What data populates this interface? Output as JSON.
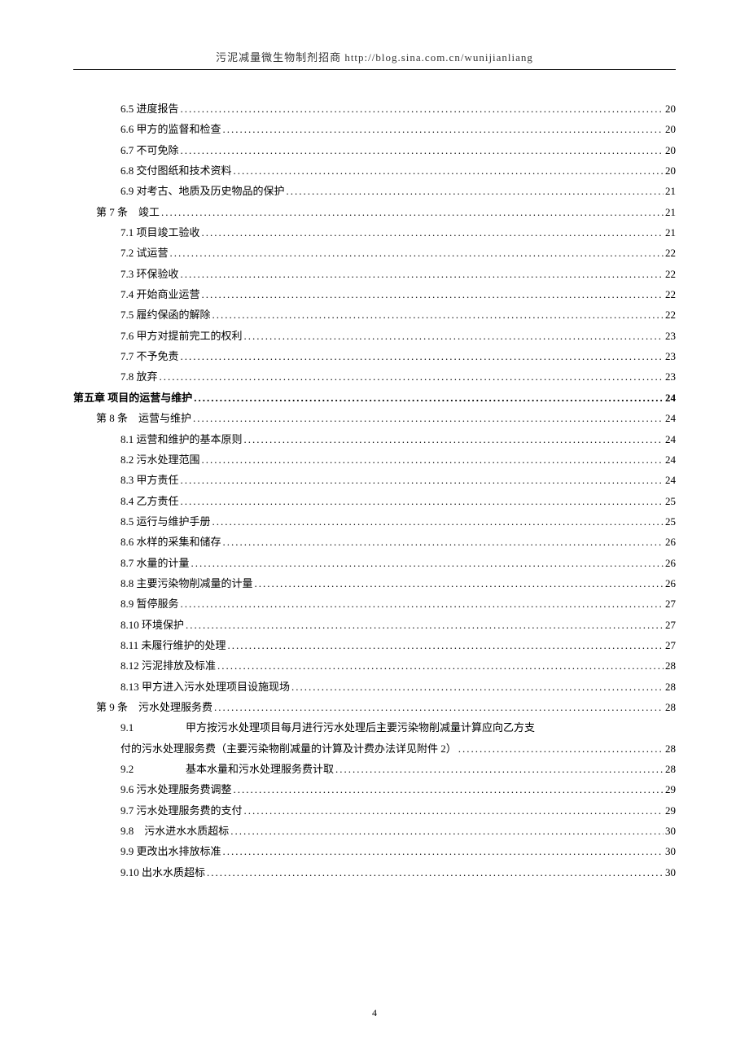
{
  "header": "污泥减量微生物制剂招商 http://blog.sina.com.cn/wunijianliang",
  "page_number": "4",
  "toc": [
    {
      "level": 2,
      "text": "6.5 进度报告",
      "page": "20"
    },
    {
      "level": 2,
      "text": "6.6 甲方的监督和检查",
      "page": "20"
    },
    {
      "level": 2,
      "text": "6.7 不可免除",
      "page": "20"
    },
    {
      "level": 2,
      "text": "6.8 交付图纸和技术资料",
      "page": "20"
    },
    {
      "level": 2,
      "text": "6.9 对考古、地质及历史物品的保护",
      "page": "21"
    },
    {
      "level": 1,
      "text": "第 7 条　竣工",
      "page": "21"
    },
    {
      "level": 2,
      "text": "7.1 项目竣工验收",
      "page": "21"
    },
    {
      "level": 2,
      "text": "7.2 试运营",
      "page": "22"
    },
    {
      "level": 2,
      "text": "7.3 环保验收",
      "page": "22"
    },
    {
      "level": 2,
      "text": "7.4 开始商业运营",
      "page": "22"
    },
    {
      "level": 2,
      "text": "7.5 履约保函的解除",
      "page": "22"
    },
    {
      "level": 2,
      "text": "7.6 甲方对提前完工的权利",
      "page": "23"
    },
    {
      "level": 2,
      "text": "7.7 不予免责",
      "page": "23"
    },
    {
      "level": 2,
      "text": "7.8 放弃",
      "page": "23"
    },
    {
      "level": 0,
      "text": "第五章 项目的运营与维护",
      "page": "24"
    },
    {
      "level": 1,
      "text": "第 8 条　运营与维护",
      "page": "24"
    },
    {
      "level": 2,
      "text": "8.1 运营和维护的基本原则",
      "page": "24"
    },
    {
      "level": 2,
      "text": "8.2 污水处理范围",
      "page": "24"
    },
    {
      "level": 2,
      "text": "8.3 甲方责任",
      "page": "24"
    },
    {
      "level": 2,
      "text": "8.4 乙方责任",
      "page": "25"
    },
    {
      "level": 2,
      "text": "8.5 运行与维护手册",
      "page": "25"
    },
    {
      "level": 2,
      "text": "8.6 水样的采集和储存",
      "page": "26"
    },
    {
      "level": 2,
      "text": "8.7 水量的计量",
      "page": "26"
    },
    {
      "level": 2,
      "text": "8.8 主要污染物削减量的计量",
      "page": "26"
    },
    {
      "level": 2,
      "text": "8.9 暂停服务",
      "page": "27"
    },
    {
      "level": 2,
      "text": "8.10 环境保护",
      "page": "27"
    },
    {
      "level": 2,
      "text": "8.11 未履行维护的处理",
      "page": "27"
    },
    {
      "level": 2,
      "text": "8.12 污泥排放及标准",
      "page": "28"
    },
    {
      "level": 2,
      "text": "8.13 甲方进入污水处理项目设施现场",
      "page": "28"
    },
    {
      "level": 1,
      "text": "第 9 条　污水处理服务费",
      "page": "28"
    }
  ],
  "entry91": {
    "num": "9.1",
    "line1": "甲方按污水处理项目每月进行污水处理后主要污染物削减量计算应向乙方支",
    "line2": "付的污水处理服务费（主要污染物削减量的计算及计费办法详见附件 2）",
    "page": "28"
  },
  "entry92": {
    "num": "9.2",
    "text": "基本水量和污水处理服务费计取",
    "page": "28"
  },
  "toc_after": [
    {
      "level": 2,
      "text": "9.6 污水处理服务费调整",
      "page": "29"
    },
    {
      "level": 2,
      "text": "9.7 污水处理服务费的支付",
      "page": "29"
    },
    {
      "level": 2,
      "text": "9.8　污水进水水质超标",
      "page": "30"
    },
    {
      "level": 2,
      "text": "9.9 更改出水排放标准",
      "page": "30"
    },
    {
      "level": 2,
      "text": "9.10 出水水质超标",
      "page": "30"
    }
  ]
}
